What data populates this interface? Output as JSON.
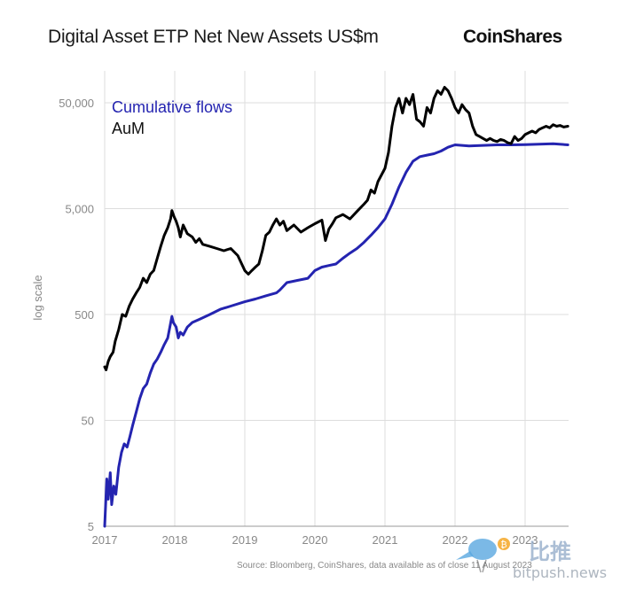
{
  "header": {
    "title": "Digital Asset ETP Net New Assets US$m",
    "brand": "CoinShares"
  },
  "footer": {
    "source": "Source: Bloomberg, CoinShares, data available as of close 11 August 2023"
  },
  "watermark": {
    "chinese_text": "比推",
    "url": "bitpush.news",
    "badge": "₿"
  },
  "chart_data": {
    "type": "line",
    "title": "Digital Asset ETP Net New Assets US$m",
    "ylabel": "log scale",
    "y_scale": "log",
    "ylim": [
      5,
      100000
    ],
    "xlim": [
      2017,
      2023.62
    ],
    "yticks": [
      5,
      50,
      500,
      5000,
      50000
    ],
    "ytick_labels": [
      "5",
      "50",
      "500",
      "5,000",
      "50,000"
    ],
    "xticks": [
      2017,
      2018,
      2019,
      2020,
      2021,
      2022,
      2023
    ],
    "xtick_labels": [
      "2017",
      "2018",
      "2019",
      "2020",
      "2021",
      "2022",
      "2023"
    ],
    "grid": true,
    "legend_placement": "top-left",
    "colors": {
      "cumulative": "#2424b0",
      "aum": "#000000"
    },
    "series": [
      {
        "name": "Cumulative flows",
        "x": [
          2017.0,
          2017.03,
          2017.05,
          2017.08,
          2017.1,
          2017.13,
          2017.16,
          2017.2,
          2017.24,
          2017.28,
          2017.32,
          2017.36,
          2017.4,
          2017.45,
          2017.5,
          2017.55,
          2017.6,
          2017.65,
          2017.7,
          2017.75,
          2017.8,
          2017.85,
          2017.9,
          2017.93,
          2017.96,
          2017.98,
          2018.02,
          2018.05,
          2018.08,
          2018.12,
          2018.18,
          2018.25,
          2018.35,
          2018.5,
          2018.65,
          2018.8,
          2019.0,
          2019.15,
          2019.3,
          2019.45,
          2019.5,
          2019.6,
          2019.75,
          2019.9,
          2020.0,
          2020.1,
          2020.2,
          2020.3,
          2020.4,
          2020.5,
          2020.6,
          2020.7,
          2020.8,
          2020.9,
          2021.0,
          2021.1,
          2021.2,
          2021.3,
          2021.4,
          2021.5,
          2021.6,
          2021.7,
          2021.8,
          2021.9,
          2022.0,
          2022.2,
          2022.4,
          2022.6,
          2022.8,
          2023.0,
          2023.2,
          2023.4,
          2023.61
        ],
        "values": [
          5,
          14,
          9,
          16,
          8,
          12,
          10,
          18,
          25,
          30,
          28,
          35,
          45,
          60,
          80,
          100,
          110,
          140,
          170,
          190,
          220,
          260,
          300,
          380,
          480,
          420,
          380,
          300,
          340,
          320,
          380,
          420,
          450,
          500,
          560,
          600,
          660,
          700,
          750,
          800,
          850,
          1000,
          1050,
          1100,
          1300,
          1400,
          1450,
          1500,
          1700,
          1900,
          2100,
          2400,
          2800,
          3300,
          4000,
          5500,
          8000,
          11000,
          14000,
          15500,
          16000,
          16500,
          17500,
          19000,
          20000,
          19500,
          19800,
          20000,
          20000,
          20100,
          20300,
          20500,
          20000
        ]
      },
      {
        "name": "AuM",
        "x": [
          2017.0,
          2017.02,
          2017.05,
          2017.08,
          2017.12,
          2017.15,
          2017.2,
          2017.25,
          2017.3,
          2017.35,
          2017.4,
          2017.45,
          2017.5,
          2017.55,
          2017.6,
          2017.65,
          2017.7,
          2017.75,
          2017.8,
          2017.85,
          2017.9,
          2017.94,
          2017.96,
          2017.99,
          2018.02,
          2018.05,
          2018.08,
          2018.12,
          2018.18,
          2018.25,
          2018.3,
          2018.35,
          2018.4,
          2018.5,
          2018.6,
          2018.7,
          2018.8,
          2018.9,
          2019.0,
          2019.05,
          2019.1,
          2019.15,
          2019.2,
          2019.25,
          2019.3,
          2019.35,
          2019.4,
          2019.45,
          2019.5,
          2019.55,
          2019.6,
          2019.7,
          2019.8,
          2019.9,
          2020.0,
          2020.1,
          2020.15,
          2020.2,
          2020.25,
          2020.3,
          2020.4,
          2020.5,
          2020.6,
          2020.7,
          2020.75,
          2020.8,
          2020.85,
          2020.9,
          2021.0,
          2021.05,
          2021.1,
          2021.15,
          2021.2,
          2021.25,
          2021.3,
          2021.35,
          2021.4,
          2021.45,
          2021.5,
          2021.55,
          2021.6,
          2021.65,
          2021.7,
          2021.75,
          2021.8,
          2021.85,
          2021.9,
          2021.95,
          2022.0,
          2022.05,
          2022.1,
          2022.15,
          2022.2,
          2022.25,
          2022.3,
          2022.35,
          2022.4,
          2022.45,
          2022.5,
          2022.55,
          2022.6,
          2022.65,
          2022.7,
          2022.75,
          2022.8,
          2022.85,
          2022.9,
          2022.95,
          2023.0,
          2023.05,
          2023.1,
          2023.15,
          2023.2,
          2023.25,
          2023.3,
          2023.35,
          2023.4,
          2023.45,
          2023.5,
          2023.55,
          2023.61
        ],
        "values": [
          160,
          150,
          180,
          200,
          220,
          280,
          360,
          500,
          480,
          600,
          700,
          800,
          900,
          1100,
          1000,
          1200,
          1300,
          1700,
          2200,
          2800,
          3300,
          4000,
          4800,
          4200,
          3800,
          3300,
          2700,
          3500,
          2900,
          2700,
          2400,
          2600,
          2300,
          2200,
          2100,
          2000,
          2100,
          1800,
          1300,
          1200,
          1300,
          1400,
          1500,
          2000,
          2800,
          3000,
          3500,
          4000,
          3500,
          3800,
          3100,
          3500,
          3000,
          3300,
          3600,
          3900,
          2500,
          3200,
          3600,
          4100,
          4400,
          4000,
          4700,
          5500,
          6000,
          7500,
          7000,
          9000,
          12000,
          17000,
          30000,
          45000,
          55000,
          40000,
          55000,
          48000,
          60000,
          35000,
          33000,
          30000,
          45000,
          40000,
          55000,
          65000,
          60000,
          70000,
          65000,
          55000,
          45000,
          40000,
          48000,
          43000,
          40000,
          30000,
          25000,
          24000,
          23000,
          22000,
          23000,
          22000,
          21500,
          22500,
          22000,
          21000,
          20500,
          24000,
          22000,
          23000,
          25000,
          26000,
          27000,
          26000,
          28000,
          29000,
          30000,
          29000,
          31000,
          30000,
          30500,
          29500,
          30000
        ]
      }
    ]
  }
}
